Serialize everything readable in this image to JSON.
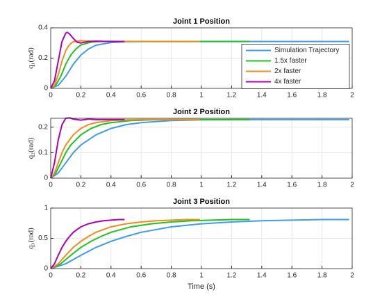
{
  "chart_data": [
    {
      "type": "line",
      "title": "Joint 1 Position",
      "ylabel": "q₁(rad)",
      "grid": true,
      "legend": "east",
      "xlim": [
        0,
        2
      ],
      "xticks": [
        0,
        0.2,
        0.4,
        0.6,
        0.8,
        1,
        1.2,
        1.4,
        1.6,
        1.8,
        2
      ],
      "ylim": [
        0,
        0.4
      ],
      "yticks": [
        0,
        0.2,
        0.4
      ],
      "series": [
        {
          "name": "Simulation Trajectory",
          "color": "#3f9ceb",
          "x": [
            0,
            0.05,
            0.1,
            0.15,
            0.2,
            0.25,
            0.3,
            0.4,
            0.5,
            0.6,
            0.8,
            1.0,
            1.5,
            1.98
          ],
          "values": [
            0,
            0.02,
            0.08,
            0.16,
            0.22,
            0.26,
            0.285,
            0.303,
            0.308,
            0.31,
            0.31,
            0.31,
            0.31,
            0.31
          ]
        },
        {
          "name": "1.5x faster",
          "color": "#1fc31f",
          "x": [
            0,
            0.033,
            0.067,
            0.1,
            0.133,
            0.167,
            0.2,
            0.267,
            0.333,
            0.4,
            0.533,
            0.667,
            1.0,
            1.32
          ],
          "values": [
            0,
            0.02,
            0.08,
            0.16,
            0.22,
            0.26,
            0.287,
            0.305,
            0.31,
            0.311,
            0.31,
            0.31,
            0.31,
            0.31
          ]
        },
        {
          "name": "2x faster",
          "color": "#f28c1c",
          "x": [
            0,
            0.025,
            0.05,
            0.075,
            0.1,
            0.125,
            0.15,
            0.2,
            0.25,
            0.3,
            0.4,
            0.5,
            0.75,
            0.99
          ],
          "values": [
            0,
            0.02,
            0.09,
            0.18,
            0.25,
            0.29,
            0.308,
            0.315,
            0.312,
            0.31,
            0.31,
            0.31,
            0.31,
            0.31
          ]
        },
        {
          "name": "4x faster",
          "color": "#b000b0",
          "x": [
            0,
            0.025,
            0.05,
            0.075,
            0.1,
            0.11,
            0.125,
            0.15,
            0.175,
            0.2,
            0.25,
            0.3,
            0.4,
            0.49
          ],
          "values": [
            0,
            0.05,
            0.18,
            0.31,
            0.365,
            0.37,
            0.36,
            0.33,
            0.305,
            0.3,
            0.31,
            0.312,
            0.31,
            0.31
          ]
        }
      ]
    },
    {
      "type": "line",
      "title": "Joint 2 Position",
      "ylabel": "q₂(rad)",
      "grid": true,
      "xlim": [
        0,
        2
      ],
      "xticks": [
        0,
        0.2,
        0.4,
        0.6,
        0.8,
        1,
        1.2,
        1.4,
        1.6,
        1.8,
        2
      ],
      "ylim": [
        0,
        0.235
      ],
      "yticks": [
        0,
        0.1,
        0.2
      ],
      "series": [
        {
          "color": "#3f9ceb",
          "x": [
            0,
            0.05,
            0.1,
            0.15,
            0.2,
            0.3,
            0.4,
            0.5,
            0.6,
            0.8,
            1.0,
            1.2,
            1.5,
            1.98
          ],
          "values": [
            0,
            0.02,
            0.06,
            0.1,
            0.13,
            0.17,
            0.195,
            0.21,
            0.218,
            0.226,
            0.229,
            0.23,
            0.23,
            0.23
          ]
        },
        {
          "color": "#1fc31f",
          "x": [
            0,
            0.033,
            0.067,
            0.1,
            0.133,
            0.2,
            0.267,
            0.333,
            0.4,
            0.533,
            0.667,
            0.8,
            1.0,
            1.32
          ],
          "values": [
            0,
            0.02,
            0.06,
            0.1,
            0.13,
            0.17,
            0.195,
            0.21,
            0.218,
            0.226,
            0.229,
            0.23,
            0.23,
            0.23
          ]
        },
        {
          "color": "#f28c1c",
          "x": [
            0,
            0.025,
            0.05,
            0.075,
            0.1,
            0.15,
            0.2,
            0.25,
            0.3,
            0.4,
            0.5,
            0.6,
            0.75,
            0.99
          ],
          "values": [
            0,
            0.02,
            0.06,
            0.1,
            0.13,
            0.17,
            0.195,
            0.21,
            0.218,
            0.226,
            0.229,
            0.23,
            0.23,
            0.23
          ]
        },
        {
          "color": "#b000b0",
          "x": [
            0,
            0.025,
            0.05,
            0.075,
            0.1,
            0.125,
            0.15,
            0.2,
            0.25,
            0.3,
            0.4,
            0.49
          ],
          "values": [
            0,
            0.06,
            0.15,
            0.21,
            0.235,
            0.237,
            0.232,
            0.228,
            0.232,
            0.23,
            0.23,
            0.23
          ]
        }
      ]
    },
    {
      "type": "line",
      "title": "Joint 3 Position",
      "ylabel": "q₃(rad)",
      "xlabel": "Time (s)",
      "grid": true,
      "xlim": [
        0,
        2
      ],
      "xticks": [
        0,
        0.2,
        0.4,
        0.6,
        0.8,
        1,
        1.2,
        1.4,
        1.6,
        1.8,
        2
      ],
      "ylim": [
        0,
        1
      ],
      "yticks": [
        0,
        0.5,
        1
      ],
      "series": [
        {
          "color": "#3f9ceb",
          "x": [
            0,
            0.1,
            0.2,
            0.3,
            0.4,
            0.5,
            0.6,
            0.8,
            1.0,
            1.2,
            1.4,
            1.6,
            1.8,
            1.98
          ],
          "values": [
            0,
            0.08,
            0.22,
            0.35,
            0.45,
            0.53,
            0.6,
            0.69,
            0.74,
            0.77,
            0.79,
            0.8,
            0.81,
            0.81
          ]
        },
        {
          "color": "#1fc31f",
          "x": [
            0,
            0.067,
            0.133,
            0.2,
            0.267,
            0.333,
            0.4,
            0.533,
            0.667,
            0.8,
            0.933,
            1.067,
            1.2,
            1.32
          ],
          "values": [
            0,
            0.08,
            0.22,
            0.35,
            0.45,
            0.53,
            0.6,
            0.69,
            0.74,
            0.77,
            0.79,
            0.8,
            0.81,
            0.81
          ]
        },
        {
          "color": "#f28c1c",
          "x": [
            0,
            0.05,
            0.1,
            0.15,
            0.2,
            0.25,
            0.3,
            0.4,
            0.5,
            0.6,
            0.7,
            0.8,
            0.9,
            0.99
          ],
          "values": [
            0,
            0.08,
            0.22,
            0.35,
            0.45,
            0.53,
            0.6,
            0.69,
            0.74,
            0.77,
            0.79,
            0.8,
            0.81,
            0.81
          ]
        },
        {
          "color": "#b000b0",
          "x": [
            0,
            0.025,
            0.05,
            0.075,
            0.1,
            0.125,
            0.15,
            0.2,
            0.25,
            0.3,
            0.35,
            0.4,
            0.45,
            0.49
          ],
          "values": [
            0,
            0.08,
            0.22,
            0.35,
            0.45,
            0.53,
            0.6,
            0.69,
            0.74,
            0.77,
            0.79,
            0.8,
            0.81,
            0.81
          ]
        }
      ]
    }
  ]
}
